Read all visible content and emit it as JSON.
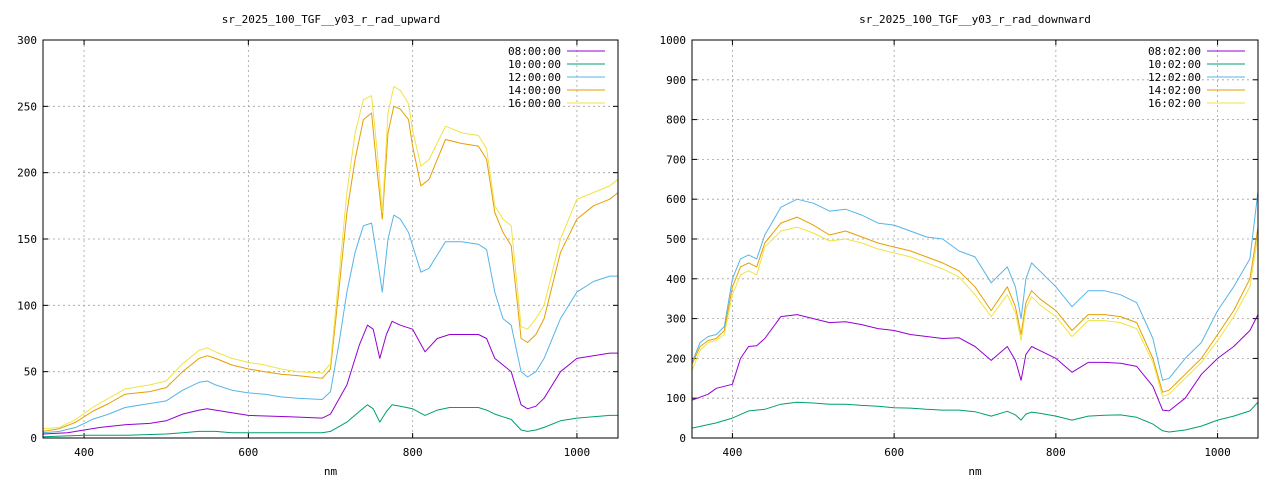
{
  "chart_data": [
    {
      "type": "line",
      "title": "sr_2025_100_TGF__y03_r_rad_upward",
      "xlabel": "nm",
      "ylabel": "",
      "xlim": [
        350,
        1050
      ],
      "ylim": [
        0,
        300
      ],
      "xticks": [
        400,
        600,
        800,
        1000
      ],
      "yticks": [
        0,
        50,
        100,
        150,
        200,
        250,
        300
      ],
      "grid": true,
      "legend_position": "top-right",
      "series": [
        {
          "name": "08:00:00",
          "color": "#9400d3",
          "x": [
            350,
            380,
            400,
            420,
            450,
            480,
            500,
            520,
            540,
            550,
            560,
            580,
            600,
            650,
            690,
            700,
            720,
            735,
            745,
            752,
            760,
            768,
            775,
            785,
            800,
            815,
            830,
            845,
            860,
            880,
            890,
            900,
            910,
            920,
            932,
            940,
            950,
            960,
            980,
            1000,
            1020,
            1040,
            1050
          ],
          "y": [
            3,
            4,
            6,
            8,
            10,
            11,
            13,
            18,
            21,
            22,
            21,
            19,
            17,
            16,
            15,
            18,
            40,
            70,
            85,
            82,
            60,
            78,
            88,
            85,
            82,
            65,
            75,
            78,
            78,
            78,
            75,
            60,
            55,
            50,
            25,
            22,
            24,
            30,
            50,
            60,
            62,
            64,
            64
          ]
        },
        {
          "name": "10:00:00",
          "color": "#009e73",
          "x": [
            350,
            400,
            450,
            500,
            520,
            540,
            550,
            560,
            580,
            600,
            650,
            690,
            700,
            720,
            735,
            745,
            752,
            760,
            768,
            775,
            785,
            800,
            815,
            830,
            845,
            860,
            880,
            890,
            900,
            910,
            920,
            932,
            940,
            950,
            960,
            980,
            1000,
            1020,
            1040,
            1050
          ],
          "y": [
            1,
            2,
            2,
            3,
            4,
            5,
            5,
            5,
            4,
            4,
            4,
            4,
            5,
            12,
            20,
            25,
            22,
            12,
            20,
            25,
            24,
            22,
            17,
            21,
            23,
            23,
            23,
            21,
            18,
            16,
            14,
            6,
            5,
            6,
            8,
            13,
            15,
            16,
            17,
            17
          ]
        },
        {
          "name": "12:00:00",
          "color": "#56b4e9",
          "x": [
            350,
            370,
            390,
            410,
            430,
            450,
            480,
            500,
            520,
            540,
            550,
            560,
            580,
            600,
            620,
            640,
            660,
            690,
            700,
            710,
            720,
            730,
            740,
            750,
            757,
            763,
            770,
            777,
            785,
            795,
            800,
            810,
            820,
            840,
            860,
            880,
            890,
            900,
            910,
            920,
            932,
            940,
            950,
            960,
            980,
            1000,
            1020,
            1040,
            1050
          ],
          "y": [
            4,
            5,
            8,
            14,
            18,
            23,
            26,
            28,
            36,
            42,
            43,
            40,
            36,
            34,
            33,
            31,
            30,
            29,
            35,
            70,
            110,
            140,
            160,
            162,
            135,
            110,
            150,
            168,
            165,
            155,
            145,
            125,
            128,
            148,
            148,
            146,
            142,
            110,
            90,
            85,
            50,
            46,
            50,
            60,
            90,
            110,
            118,
            122,
            122
          ]
        },
        {
          "name": "14:00:00",
          "color": "#e69f00",
          "x": [
            350,
            370,
            390,
            410,
            430,
            450,
            480,
            500,
            520,
            540,
            550,
            560,
            580,
            600,
            620,
            640,
            660,
            690,
            700,
            710,
            720,
            730,
            740,
            750,
            757,
            763,
            770,
            777,
            785,
            795,
            800,
            810,
            820,
            840,
            860,
            880,
            890,
            900,
            910,
            920,
            932,
            940,
            950,
            960,
            980,
            1000,
            1020,
            1040,
            1050
          ],
          "y": [
            5,
            7,
            12,
            20,
            26,
            33,
            35,
            38,
            50,
            60,
            62,
            60,
            55,
            52,
            50,
            48,
            47,
            45,
            52,
            110,
            170,
            210,
            240,
            245,
            200,
            165,
            230,
            250,
            248,
            240,
            220,
            190,
            195,
            225,
            222,
            220,
            210,
            170,
            155,
            145,
            75,
            72,
            78,
            90,
            140,
            165,
            175,
            180,
            185
          ]
        },
        {
          "name": "16:00:00",
          "color": "#f0e442",
          "x": [
            350,
            370,
            390,
            410,
            430,
            450,
            480,
            500,
            520,
            540,
            550,
            560,
            580,
            600,
            620,
            640,
            660,
            690,
            700,
            710,
            720,
            730,
            740,
            750,
            757,
            763,
            770,
            777,
            785,
            795,
            800,
            810,
            820,
            840,
            860,
            880,
            890,
            900,
            910,
            920,
            932,
            940,
            950,
            960,
            980,
            1000,
            1020,
            1040,
            1050
          ],
          "y": [
            7,
            8,
            14,
            23,
            30,
            37,
            40,
            43,
            56,
            66,
            68,
            65,
            60,
            57,
            55,
            52,
            50,
            49,
            56,
            120,
            185,
            230,
            255,
            258,
            215,
            170,
            245,
            265,
            262,
            252,
            232,
            205,
            210,
            235,
            230,
            228,
            218,
            175,
            165,
            160,
            84,
            82,
            90,
            100,
            150,
            180,
            185,
            190,
            195
          ]
        }
      ]
    },
    {
      "type": "line",
      "title": "sr_2025_100_TGF__y03_r_rad_downward",
      "xlabel": "nm",
      "ylabel": "",
      "xlim": [
        350,
        1050
      ],
      "ylim": [
        0,
        1000
      ],
      "xticks": [
        400,
        600,
        800,
        1000
      ],
      "yticks": [
        0,
        100,
        200,
        300,
        400,
        500,
        600,
        700,
        800,
        900,
        1000
      ],
      "grid": true,
      "legend_position": "top-right",
      "series": [
        {
          "name": "08:02:00",
          "color": "#9400d3",
          "x": [
            350,
            370,
            380,
            390,
            400,
            410,
            420,
            430,
            440,
            460,
            480,
            500,
            520,
            540,
            560,
            580,
            600,
            620,
            640,
            660,
            680,
            700,
            720,
            740,
            750,
            757,
            763,
            770,
            780,
            800,
            820,
            840,
            860,
            880,
            900,
            920,
            932,
            940,
            960,
            980,
            1000,
            1020,
            1040,
            1050
          ],
          "y": [
            95,
            110,
            125,
            130,
            135,
            200,
            230,
            232,
            250,
            305,
            310,
            300,
            290,
            292,
            285,
            275,
            270,
            260,
            255,
            250,
            252,
            230,
            195,
            230,
            195,
            145,
            210,
            230,
            220,
            200,
            165,
            190,
            190,
            188,
            180,
            130,
            70,
            68,
            100,
            160,
            200,
            230,
            270,
            310
          ]
        },
        {
          "name": "10:02:00",
          "color": "#009e73",
          "x": [
            350,
            380,
            400,
            420,
            440,
            460,
            480,
            500,
            520,
            540,
            560,
            580,
            600,
            620,
            640,
            660,
            680,
            700,
            720,
            740,
            750,
            757,
            763,
            770,
            780,
            800,
            820,
            840,
            860,
            880,
            900,
            920,
            932,
            940,
            960,
            980,
            1000,
            1020,
            1040,
            1050
          ],
          "y": [
            25,
            38,
            50,
            68,
            72,
            85,
            90,
            88,
            85,
            85,
            82,
            80,
            76,
            75,
            72,
            70,
            70,
            66,
            55,
            67,
            58,
            45,
            60,
            65,
            62,
            55,
            45,
            55,
            57,
            58,
            52,
            35,
            18,
            15,
            20,
            30,
            45,
            55,
            68,
            90
          ]
        },
        {
          "name": "12:02:00",
          "color": "#56b4e9",
          "x": [
            350,
            360,
            370,
            380,
            390,
            400,
            410,
            420,
            430,
            440,
            460,
            480,
            500,
            520,
            540,
            560,
            580,
            600,
            620,
            640,
            660,
            680,
            700,
            720,
            740,
            750,
            757,
            763,
            770,
            780,
            800,
            820,
            840,
            860,
            880,
            900,
            920,
            932,
            940,
            960,
            980,
            1000,
            1020,
            1040,
            1050
          ],
          "y": [
            190,
            240,
            255,
            260,
            280,
            400,
            450,
            460,
            450,
            510,
            580,
            600,
            590,
            570,
            575,
            560,
            540,
            535,
            520,
            505,
            500,
            470,
            455,
            390,
            430,
            380,
            300,
            400,
            440,
            420,
            380,
            330,
            370,
            370,
            360,
            340,
            250,
            145,
            150,
            200,
            240,
            320,
            380,
            450,
            620
          ]
        },
        {
          "name": "14:02:00",
          "color": "#e69f00",
          "x": [
            350,
            360,
            370,
            380,
            390,
            400,
            410,
            420,
            430,
            440,
            460,
            480,
            500,
            520,
            540,
            560,
            580,
            600,
            620,
            640,
            660,
            680,
            700,
            720,
            740,
            750,
            757,
            763,
            770,
            780,
            800,
            820,
            840,
            860,
            880,
            900,
            920,
            932,
            940,
            960,
            980,
            1000,
            1020,
            1040,
            1050
          ],
          "y": [
            185,
            230,
            245,
            250,
            270,
            380,
            430,
            440,
            430,
            490,
            540,
            555,
            535,
            510,
            520,
            505,
            490,
            480,
            470,
            455,
            440,
            420,
            380,
            320,
            380,
            330,
            260,
            340,
            370,
            350,
            320,
            270,
            310,
            310,
            305,
            290,
            200,
            115,
            120,
            160,
            200,
            260,
            320,
            400,
            530
          ]
        },
        {
          "name": "16:02:00",
          "color": "#f0e442",
          "x": [
            350,
            360,
            370,
            380,
            390,
            400,
            410,
            420,
            430,
            440,
            460,
            480,
            500,
            520,
            540,
            560,
            580,
            600,
            620,
            640,
            660,
            680,
            700,
            720,
            740,
            750,
            757,
            763,
            770,
            780,
            800,
            820,
            840,
            860,
            880,
            900,
            920,
            932,
            940,
            960,
            980,
            1000,
            1020,
            1040,
            1050
          ],
          "y": [
            170,
            220,
            240,
            245,
            260,
            360,
            410,
            420,
            410,
            480,
            520,
            530,
            515,
            495,
            500,
            490,
            475,
            465,
            455,
            440,
            425,
            405,
            360,
            305,
            360,
            315,
            245,
            325,
            355,
            335,
            305,
            255,
            295,
            295,
            290,
            275,
            190,
            105,
            110,
            150,
            190,
            245,
            305,
            380,
            510
          ]
        }
      ]
    }
  ]
}
